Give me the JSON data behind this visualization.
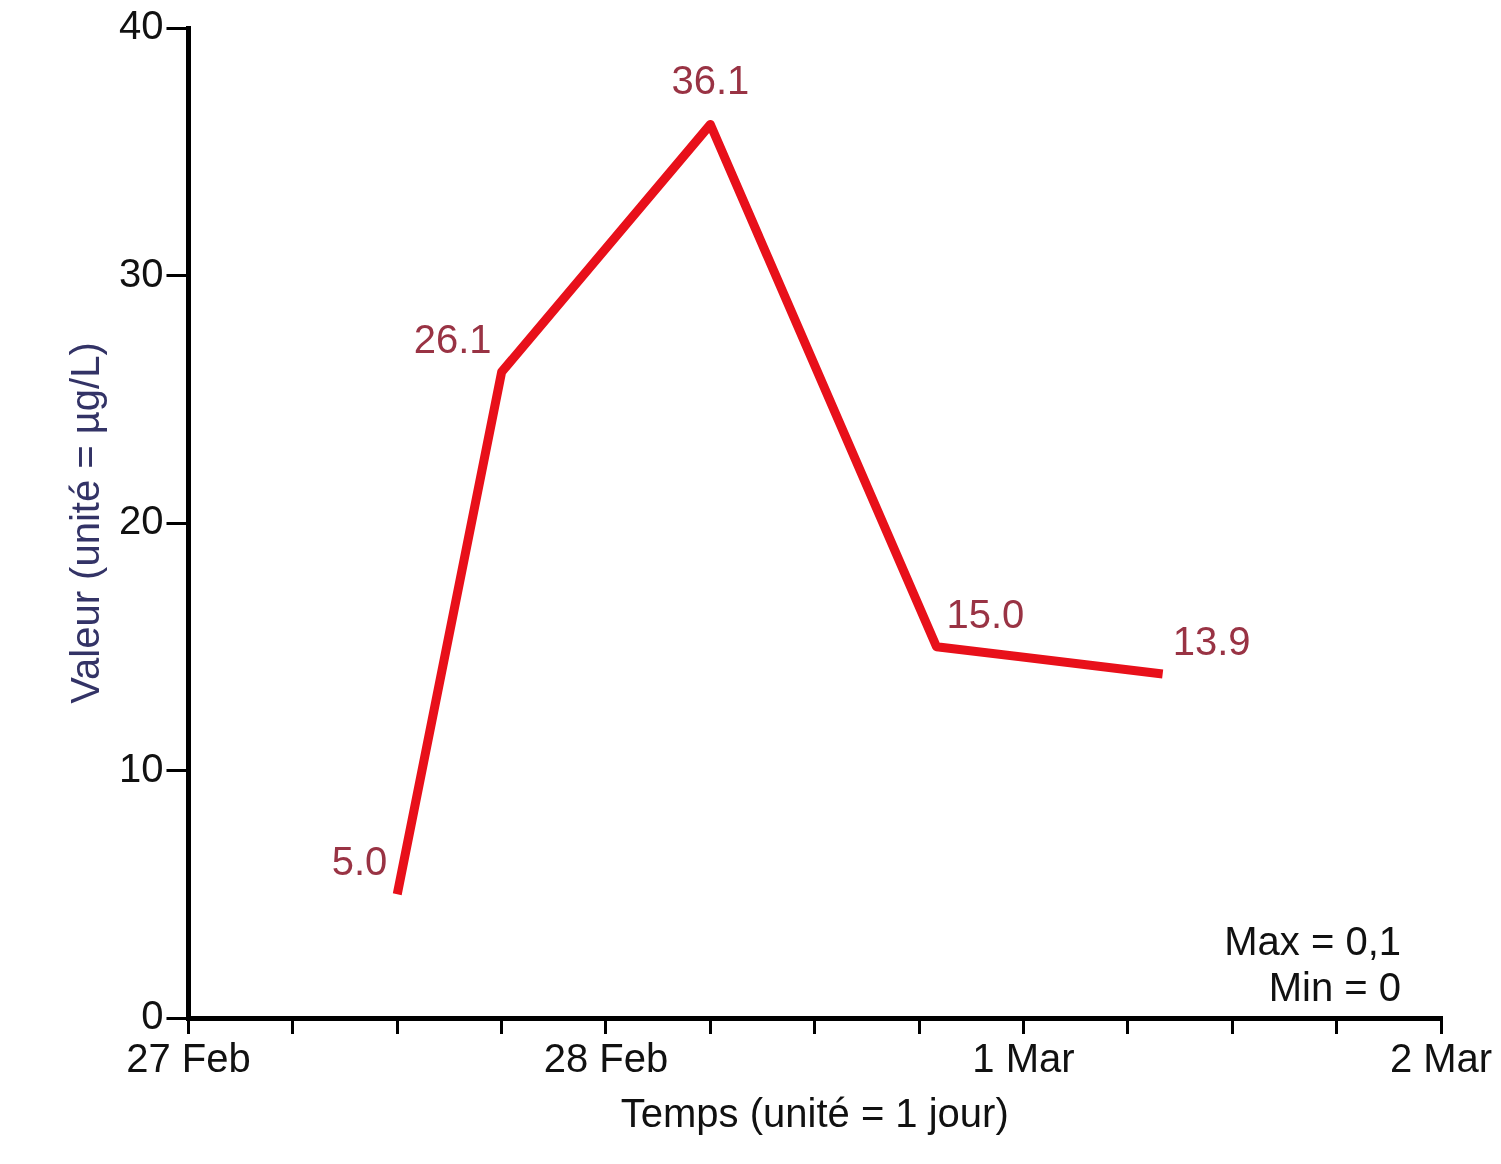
{
  "chart_data": {
    "type": "line",
    "xlabel": "Temps (unité = 1 jour)",
    "ylabel": "Valeur (unité = µg/L)",
    "x": [
      "--02-27T12:00",
      "--02-27T18:00",
      "--02-28T06:00",
      "--02-28T19:00",
      "--03-01T08:00"
    ],
    "series": [
      {
        "color": "#e8101a",
        "values": [
          5.0,
          26.1,
          36.1,
          15.0,
          13.9
        ],
        "value_labels": [
          "5.0",
          "26.1",
          "36.1",
          "15.0",
          "13.9"
        ]
      }
    ],
    "xlim": [
      "--02-27",
      "--03-02"
    ],
    "xticks": [
      {
        "value": "--02-27",
        "label": "27 Feb"
      },
      {
        "value": "--02-27T06:00",
        "label": null
      },
      {
        "value": "--02-27T12:00",
        "label": null
      },
      {
        "value": "--02-27T18:00",
        "label": null
      },
      {
        "value": "--02-28",
        "label": "28 Feb"
      },
      {
        "value": "--02-28T06:00",
        "label": null
      },
      {
        "value": "--02-28T12:00",
        "label": null
      },
      {
        "value": "--02-28T18:00",
        "label": null
      },
      {
        "value": "--03-01",
        "label": "1 Mar"
      },
      {
        "value": "--03-01T06:00",
        "label": null
      },
      {
        "value": "--03-01T12:00",
        "label": null
      },
      {
        "value": "--03-01T18:00",
        "label": null
      },
      {
        "value": "--03-02",
        "label": "2 Mar"
      }
    ],
    "ylim": [
      0,
      40
    ],
    "yticks": [
      0,
      10,
      20,
      30,
      40
    ],
    "grid": false,
    "legend": false,
    "marker": "none",
    "line_style": "solid",
    "annotations": [
      "Max = 0,1",
      "Min = 0"
    ]
  }
}
